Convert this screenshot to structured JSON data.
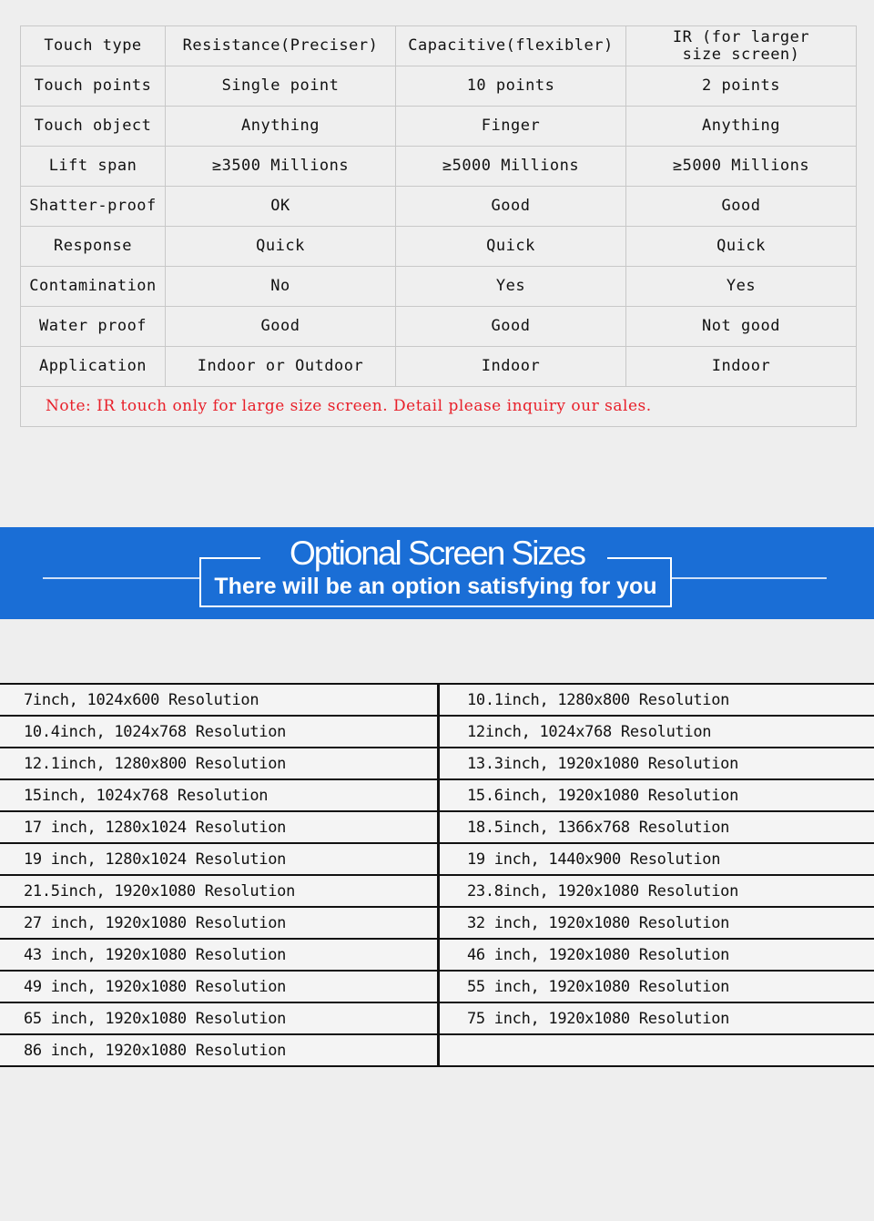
{
  "spec_table": {
    "rows": [
      [
        "Touch type",
        "Resistance(Preciser)",
        "Capacitive(flexibler)",
        "IR (for larger size screen)"
      ],
      [
        "Touch points",
        "Single point",
        "10 points",
        "2 points"
      ],
      [
        "Touch object",
        "Anything",
        "Finger",
        "Anything"
      ],
      [
        "Lift span",
        "≥3500 Millions",
        "≥5000 Millions",
        "≥5000 Millions"
      ],
      [
        "Shatter-proof",
        "OK",
        "Good",
        "Good"
      ],
      [
        "Response",
        "Quick",
        "Quick",
        "Quick"
      ],
      [
        "Contamination",
        "No",
        "Yes",
        "Yes"
      ],
      [
        "Water proof",
        "Good",
        "Good",
        "Not good"
      ],
      [
        "Application",
        "Indoor or Outdoor",
        "Indoor",
        "Indoor"
      ]
    ],
    "note": "Note: IR touch only for large size screen. Detail please inquiry our sales."
  },
  "banner": {
    "title": "Optional Screen Sizes",
    "subtitle": "There will be an option satisfying for you",
    "color": "#1a6ed6"
  },
  "sizes": [
    [
      "7inch, 1024x600 Resolution",
      "10.1inch, 1280x800 Resolution"
    ],
    [
      "10.4inch, 1024x768 Resolution",
      "12inch, 1024x768 Resolution"
    ],
    [
      "12.1inch, 1280x800 Resolution",
      "13.3inch, 1920x1080 Resolution"
    ],
    [
      "15inch, 1024x768 Resolution",
      "15.6inch, 1920x1080 Resolution"
    ],
    [
      "17 inch, 1280x1024 Resolution",
      "18.5inch, 1366x768 Resolution"
    ],
    [
      "19 inch, 1280x1024 Resolution",
      "19 inch, 1440x900 Resolution"
    ],
    [
      "21.5inch, 1920x1080 Resolution",
      "23.8inch, 1920x1080 Resolution"
    ],
    [
      "27 inch, 1920x1080 Resolution",
      "32 inch, 1920x1080 Resolution"
    ],
    [
      "43 inch, 1920x1080 Resolution",
      "46 inch, 1920x1080 Resolution"
    ],
    [
      "49 inch, 1920x1080 Resolution",
      "55 inch, 1920x1080 Resolution"
    ],
    [
      "65 inch, 1920x1080 Resolution",
      "75 inch, 1920x1080 Resolution"
    ],
    [
      "86 inch, 1920x1080 Resolution",
      ""
    ]
  ]
}
